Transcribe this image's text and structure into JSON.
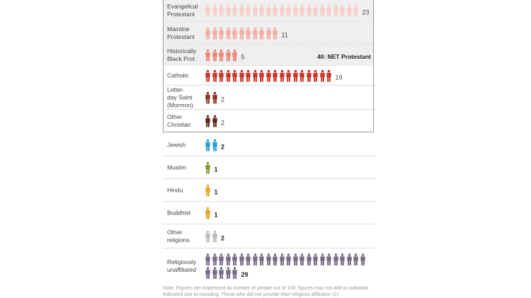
{
  "chart_data": {
    "type": "pictograph",
    "unit": "people out of 100",
    "net_label": "40: NET Protestant",
    "rows": [
      {
        "label": "Evangelical\nProtestant",
        "value": 23,
        "color": "#f8cdc8",
        "group": "christian",
        "bold": false
      },
      {
        "label": "Mainline\nProtestant",
        "value": 11,
        "color": "#f2aca2",
        "group": "christian",
        "bold": false
      },
      {
        "label": "Historically\nBlack Prot.",
        "value": 5,
        "color": "#ea8678",
        "group": "christian",
        "bold": false
      },
      {
        "label": "Catholic",
        "value": 19,
        "color": "#c8372a",
        "group": "christian",
        "bold": false
      },
      {
        "label": "Latter-\nday Saint\n(Mormon)",
        "value": 2,
        "color": "#8e3423",
        "group": "christian",
        "bold": false
      },
      {
        "label": "Other\nChristian",
        "value": 2,
        "color": "#5c291b",
        "group": "christian",
        "bold": false
      },
      {
        "label": "Jewish",
        "value": 2,
        "color": "#2a9dd6",
        "group": "other",
        "bold": true
      },
      {
        "label": "Muslim",
        "value": 1,
        "color": "#87983a",
        "group": "other",
        "bold": true
      },
      {
        "label": "Hindu",
        "value": 1,
        "color": "#e6a326",
        "group": "other",
        "bold": true
      },
      {
        "label": "Buddhist",
        "value": 1,
        "color": "#e8a020",
        "group": "other",
        "bold": true
      },
      {
        "label": "Other\nreligions",
        "value": 2,
        "color": "#bcbcbc",
        "group": "other",
        "bold": true
      },
      {
        "label": "Religiously\nunaffiliated",
        "value": 29,
        "color": "#776b88",
        "group": "other",
        "bold": true
      }
    ]
  },
  "note": "Note: Figures are expressed as number of people out of 100; figures may not add to subtotals indicated due to rounding. Those who did not provide their religious affiliation (1)"
}
